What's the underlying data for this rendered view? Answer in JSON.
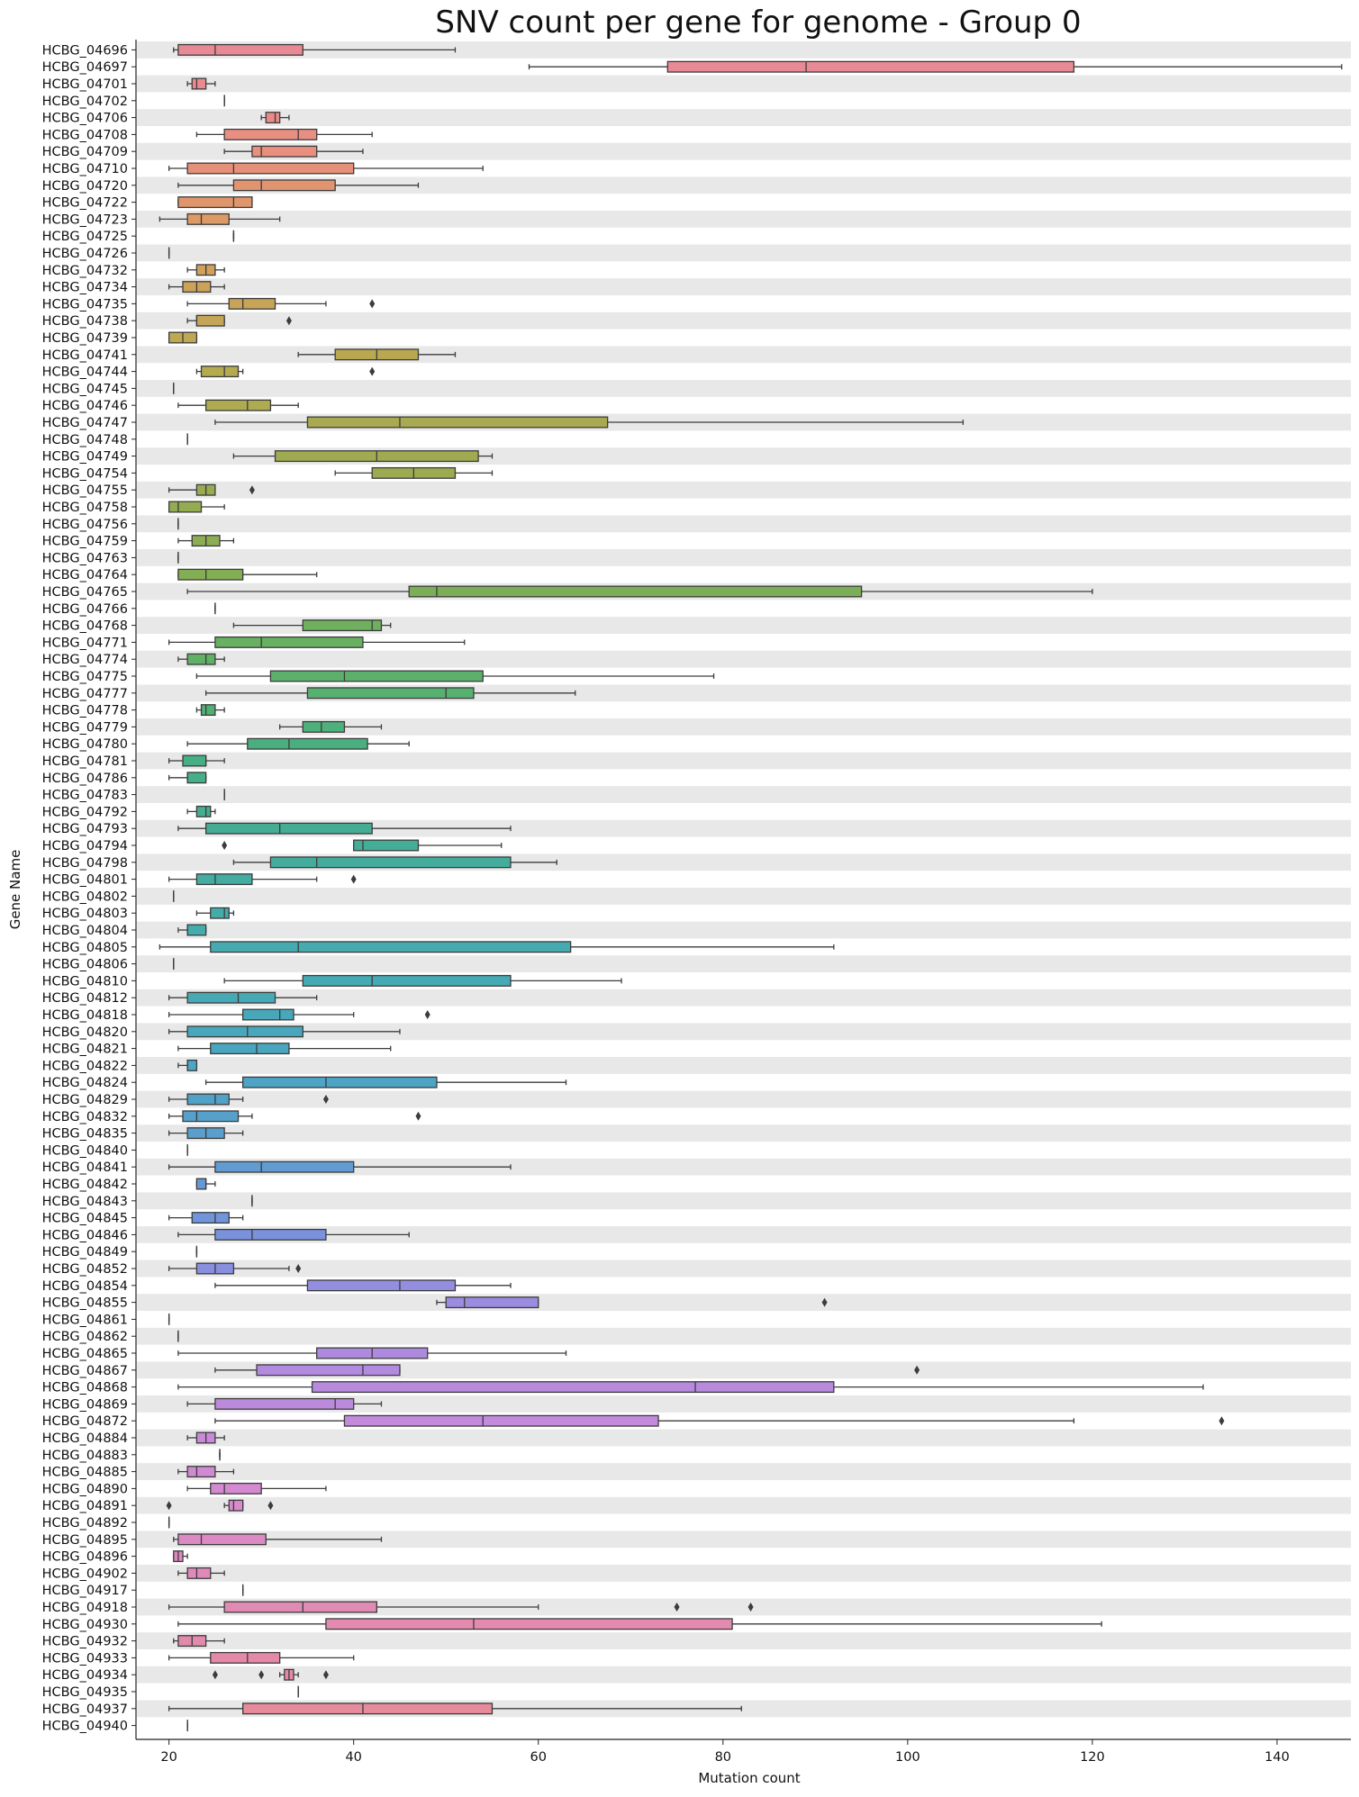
{
  "chart_data": {
    "type": "boxplot",
    "orientation": "horizontal",
    "title": "SNV count per gene for genome - Group 0",
    "xlabel": "Mutation count",
    "ylabel": "Gene Name",
    "xlim": [
      17.5,
      148
    ],
    "x_ticks": [
      20,
      40,
      60,
      80,
      100,
      120,
      140
    ],
    "alternating_row_shading": true,
    "grid": false,
    "legend": "none",
    "outlier_color": "#3c3c3c",
    "line_color": "#3c3c3c",
    "categories": [
      "HCBG_04696",
      "HCBG_04697",
      "HCBG_04701",
      "HCBG_04702",
      "HCBG_04706",
      "HCBG_04708",
      "HCBG_04709",
      "HCBG_04710",
      "HCBG_04720",
      "HCBG_04722",
      "HCBG_04723",
      "HCBG_04725",
      "HCBG_04726",
      "HCBG_04732",
      "HCBG_04734",
      "HCBG_04735",
      "HCBG_04738",
      "HCBG_04739",
      "HCBG_04741",
      "HCBG_04744",
      "HCBG_04745",
      "HCBG_04746",
      "HCBG_04747",
      "HCBG_04748",
      "HCBG_04749",
      "HCBG_04754",
      "HCBG_04755",
      "HCBG_04758",
      "HCBG_04756",
      "HCBG_04759",
      "HCBG_04763",
      "HCBG_04764",
      "HCBG_04765",
      "HCBG_04766",
      "HCBG_04768",
      "HCBG_04771",
      "HCBG_04774",
      "HCBG_04775",
      "HCBG_04777",
      "HCBG_04778",
      "HCBG_04779",
      "HCBG_04780",
      "HCBG_04781",
      "HCBG_04786",
      "HCBG_04783",
      "HCBG_04792",
      "HCBG_04793",
      "HCBG_04794",
      "HCBG_04798",
      "HCBG_04801",
      "HCBG_04802",
      "HCBG_04803",
      "HCBG_04804",
      "HCBG_04805",
      "HCBG_04806",
      "HCBG_04810",
      "HCBG_04812",
      "HCBG_04818",
      "HCBG_04820",
      "HCBG_04821",
      "HCBG_04822",
      "HCBG_04824",
      "HCBG_04829",
      "HCBG_04832",
      "HCBG_04835",
      "HCBG_04840",
      "HCBG_04841",
      "HCBG_04842",
      "HCBG_04843",
      "HCBG_04845",
      "HCBG_04846",
      "HCBG_04849",
      "HCBG_04852",
      "HCBG_04854",
      "HCBG_04855",
      "HCBG_04861",
      "HCBG_04862",
      "HCBG_04865",
      "HCBG_04867",
      "HCBG_04868",
      "HCBG_04869",
      "HCBG_04872",
      "HCBG_04884",
      "HCBG_04883",
      "HCBG_04885",
      "HCBG_04890",
      "HCBG_04891",
      "HCBG_04892",
      "HCBG_04895",
      "HCBG_04896",
      "HCBG_04902",
      "HCBG_04917",
      "HCBG_04918",
      "HCBG_04930",
      "HCBG_04932",
      "HCBG_04933",
      "HCBG_04934",
      "HCBG_04935",
      "HCBG_04937",
      "HCBG_04940"
    ],
    "boxes": [
      {
        "min": 20.5,
        "q1": 21,
        "median": 25,
        "q3": 34.5,
        "max": 51,
        "color": "#e88a95",
        "outliers": []
      },
      {
        "min": 59,
        "q1": 74,
        "median": 89,
        "q3": 118,
        "max": 147,
        "color": "#e88a95",
        "outliers": []
      },
      {
        "min": 22,
        "q1": 22.5,
        "median": 23,
        "q3": 24,
        "max": 25,
        "color": "#e88a90",
        "outliers": []
      },
      {
        "min": 26,
        "q1": 26,
        "median": 26,
        "q3": 26,
        "max": 26,
        "color": "#e88a90",
        "outliers": []
      },
      {
        "min": 30,
        "q1": 30.5,
        "median": 31.5,
        "q3": 32,
        "max": 33,
        "color": "#e88a88",
        "outliers": []
      },
      {
        "min": 23,
        "q1": 26,
        "median": 34,
        "q3": 36,
        "max": 42,
        "color": "#e88f82",
        "outliers": []
      },
      {
        "min": 26,
        "q1": 29,
        "median": 30,
        "q3": 36,
        "max": 41,
        "color": "#e88f7e",
        "outliers": []
      },
      {
        "min": 20,
        "q1": 22,
        "median": 27,
        "q3": 40,
        "max": 54,
        "color": "#e6907a",
        "outliers": []
      },
      {
        "min": 21,
        "q1": 27,
        "median": 30,
        "q3": 38,
        "max": 47,
        "color": "#e29470",
        "outliers": []
      },
      {
        "min": 21,
        "q1": 21,
        "median": 27,
        "q3": 29,
        "max": 29,
        "color": "#e0966c",
        "outliers": []
      },
      {
        "min": 19,
        "q1": 22,
        "median": 23.5,
        "q3": 26.5,
        "max": 32,
        "color": "#db9a66",
        "outliers": []
      },
      {
        "min": 27,
        "q1": 27,
        "median": 27,
        "q3": 27,
        "max": 27,
        "color": "#d89c62",
        "outliers": []
      },
      {
        "min": 20,
        "q1": 20,
        "median": 20,
        "q3": 20,
        "max": 20,
        "color": "#d49e5e",
        "outliers": []
      },
      {
        "min": 22,
        "q1": 23,
        "median": 24,
        "q3": 25,
        "max": 26,
        "color": "#d0a05c",
        "outliers": []
      },
      {
        "min": 20,
        "q1": 21.5,
        "median": 23,
        "q3": 24.5,
        "max": 26,
        "color": "#cca25a",
        "outliers": []
      },
      {
        "min": 22,
        "q1": 26.5,
        "median": 28,
        "q3": 31.5,
        "max": 37,
        "color": "#c8a458",
        "outliers": [
          42
        ]
      },
      {
        "min": 22,
        "q1": 23,
        "median": 23,
        "q3": 26,
        "max": 26,
        "color": "#c4a656",
        "outliers": [
          33
        ]
      },
      {
        "min": 20,
        "q1": 20,
        "median": 21.5,
        "q3": 23,
        "max": 23,
        "color": "#bfa854",
        "outliers": []
      },
      {
        "min": 34,
        "q1": 38,
        "median": 42.5,
        "q3": 47,
        "max": 51,
        "color": "#b8a850",
        "outliers": []
      },
      {
        "min": 23,
        "q1": 23.5,
        "median": 26,
        "q3": 27.5,
        "max": 28,
        "color": "#b4aa50",
        "outliers": [
          42
        ]
      },
      {
        "min": 20.5,
        "q1": 20.5,
        "median": 20.5,
        "q3": 20.5,
        "max": 20.5,
        "color": "#b0aa50",
        "outliers": []
      },
      {
        "min": 21,
        "q1": 24,
        "median": 28.5,
        "q3": 31,
        "max": 34,
        "color": "#aeab50",
        "outliers": []
      },
      {
        "min": 25,
        "q1": 35,
        "median": 45,
        "q3": 67.5,
        "max": 106,
        "color": "#a8a950",
        "outliers": []
      },
      {
        "min": 22,
        "q1": 22,
        "median": 22,
        "q3": 22,
        "max": 22,
        "color": "#a4aa50",
        "outliers": []
      },
      {
        "min": 27,
        "q1": 31.5,
        "median": 42.5,
        "q3": 53.5,
        "max": 55,
        "color": "#a0aa50",
        "outliers": []
      },
      {
        "min": 38,
        "q1": 42,
        "median": 46.5,
        "q3": 51,
        "max": 55,
        "color": "#9caa50",
        "outliers": []
      },
      {
        "min": 20,
        "q1": 23,
        "median": 24,
        "q3": 25,
        "max": 25,
        "color": "#98ab52",
        "outliers": [
          29
        ]
      },
      {
        "min": 20,
        "q1": 20,
        "median": 21,
        "q3": 23.5,
        "max": 26,
        "color": "#94ab52",
        "outliers": []
      },
      {
        "min": 21,
        "q1": 21,
        "median": 21,
        "q3": 21,
        "max": 21,
        "color": "#90ac54",
        "outliers": []
      },
      {
        "min": 21,
        "q1": 22.5,
        "median": 24,
        "q3": 25.5,
        "max": 27,
        "color": "#8cad54",
        "outliers": []
      },
      {
        "min": 21,
        "q1": 21,
        "median": 21,
        "q3": 21,
        "max": 21,
        "color": "#88ae54",
        "outliers": []
      },
      {
        "min": 21,
        "q1": 21,
        "median": 24,
        "q3": 28,
        "max": 36,
        "color": "#84ae54",
        "outliers": []
      },
      {
        "min": 22,
        "q1": 46,
        "median": 49,
        "q3": 95,
        "max": 120,
        "color": "#7cae58",
        "outliers": []
      },
      {
        "min": 25,
        "q1": 25,
        "median": 25,
        "q3": 25,
        "max": 25,
        "color": "#78b05a",
        "outliers": []
      },
      {
        "min": 27,
        "q1": 34.5,
        "median": 42,
        "q3": 43,
        "max": 44,
        "color": "#6eb05e",
        "outliers": []
      },
      {
        "min": 20,
        "q1": 25,
        "median": 30,
        "q3": 41,
        "max": 52,
        "color": "#68b062",
        "outliers": []
      },
      {
        "min": 21,
        "q1": 22,
        "median": 24,
        "q3": 25,
        "max": 26,
        "color": "#62b066",
        "outliers": []
      },
      {
        "min": 23,
        "q1": 31,
        "median": 39,
        "q3": 54,
        "max": 79,
        "color": "#5cb06c",
        "outliers": []
      },
      {
        "min": 24,
        "q1": 35,
        "median": 50,
        "q3": 53,
        "max": 64,
        "color": "#56b070",
        "outliers": []
      },
      {
        "min": 23,
        "q1": 23.5,
        "median": 24,
        "q3": 25,
        "max": 26,
        "color": "#52b074",
        "outliers": []
      },
      {
        "min": 32,
        "q1": 34.5,
        "median": 36.5,
        "q3": 39,
        "max": 43,
        "color": "#4eb07a",
        "outliers": []
      },
      {
        "min": 22,
        "q1": 28.5,
        "median": 33,
        "q3": 41.5,
        "max": 46,
        "color": "#4aaf7e",
        "outliers": []
      },
      {
        "min": 20,
        "q1": 21.5,
        "median": 24,
        "q3": 24,
        "max": 26,
        "color": "#48ae84",
        "outliers": []
      },
      {
        "min": 20,
        "q1": 22,
        "median": 22,
        "q3": 24,
        "max": 24,
        "color": "#46ae88",
        "outliers": []
      },
      {
        "min": 26,
        "q1": 26,
        "median": 26,
        "q3": 26,
        "max": 26,
        "color": "#46ae8c",
        "outliers": []
      },
      {
        "min": 22,
        "q1": 23,
        "median": 24,
        "q3": 24.5,
        "max": 25,
        "color": "#46ad90",
        "outliers": []
      },
      {
        "min": 21,
        "q1": 24,
        "median": 32,
        "q3": 42,
        "max": 57,
        "color": "#44ad94",
        "outliers": []
      },
      {
        "min": 40,
        "q1": 40,
        "median": 41,
        "q3": 47,
        "max": 56,
        "color": "#44ad98",
        "outliers": [
          26
        ]
      },
      {
        "min": 27,
        "q1": 31,
        "median": 36,
        "q3": 57,
        "max": 62,
        "color": "#44ac9c",
        "outliers": []
      },
      {
        "min": 20,
        "q1": 23,
        "median": 25,
        "q3": 29,
        "max": 36,
        "color": "#44aca0",
        "outliers": [
          40
        ]
      },
      {
        "min": 20.5,
        "q1": 20.5,
        "median": 20.5,
        "q3": 20.5,
        "max": 20.5,
        "color": "#44aca4",
        "outliers": []
      },
      {
        "min": 23,
        "q1": 24.5,
        "median": 26,
        "q3": 26.5,
        "max": 27,
        "color": "#44aca8",
        "outliers": []
      },
      {
        "min": 21,
        "q1": 22,
        "median": 22,
        "q3": 24,
        "max": 24,
        "color": "#44acac",
        "outliers": []
      },
      {
        "min": 19,
        "q1": 24.5,
        "median": 34,
        "q3": 63.5,
        "max": 92,
        "color": "#46abb0",
        "outliers": []
      },
      {
        "min": 20.5,
        "q1": 20.5,
        "median": 20.5,
        "q3": 20.5,
        "max": 20.5,
        "color": "#46abb2",
        "outliers": []
      },
      {
        "min": 26,
        "q1": 34.5,
        "median": 42,
        "q3": 57,
        "max": 69,
        "color": "#46aab4",
        "outliers": []
      },
      {
        "min": 20,
        "q1": 22,
        "median": 27.5,
        "q3": 31.5,
        "max": 36,
        "color": "#46a9b6",
        "outliers": []
      },
      {
        "min": 20,
        "q1": 28,
        "median": 32,
        "q3": 33.5,
        "max": 40,
        "color": "#48a8ba",
        "outliers": [
          48
        ]
      },
      {
        "min": 20,
        "q1": 22,
        "median": 28.5,
        "q3": 34.5,
        "max": 45,
        "color": "#48a7bc",
        "outliers": []
      },
      {
        "min": 21,
        "q1": 24.5,
        "median": 29.5,
        "q3": 33,
        "max": 44,
        "color": "#4aa6be",
        "outliers": []
      },
      {
        "min": 21,
        "q1": 22,
        "median": 22,
        "q3": 23,
        "max": 23,
        "color": "#4ca5c2",
        "outliers": []
      },
      {
        "min": 24,
        "q1": 28,
        "median": 37,
        "q3": 49,
        "max": 63,
        "color": "#4ea4c4",
        "outliers": []
      },
      {
        "min": 20,
        "q1": 22,
        "median": 25,
        "q3": 26.5,
        "max": 28,
        "color": "#52a2c8",
        "outliers": [
          37
        ]
      },
      {
        "min": 20,
        "q1": 21.5,
        "median": 23,
        "q3": 27.5,
        "max": 29,
        "color": "#56a0ca",
        "outliers": [
          47
        ]
      },
      {
        "min": 20,
        "q1": 22,
        "median": 24,
        "q3": 26,
        "max": 28,
        "color": "#5a9ecc",
        "outliers": []
      },
      {
        "min": 22,
        "q1": 22,
        "median": 22,
        "q3": 22,
        "max": 22,
        "color": "#5e9cd0",
        "outliers": []
      },
      {
        "min": 20,
        "q1": 25,
        "median": 30,
        "q3": 40,
        "max": 57,
        "color": "#629ad2",
        "outliers": []
      },
      {
        "min": 23,
        "q1": 23,
        "median": 24,
        "q3": 24,
        "max": 25,
        "color": "#6698d6",
        "outliers": []
      },
      {
        "min": 29,
        "q1": 29,
        "median": 29,
        "q3": 29,
        "max": 29,
        "color": "#6c96d8",
        "outliers": []
      },
      {
        "min": 20,
        "q1": 22.5,
        "median": 25,
        "q3": 26.5,
        "max": 28,
        "color": "#7294da",
        "outliers": []
      },
      {
        "min": 21,
        "q1": 25,
        "median": 29,
        "q3": 37,
        "max": 46,
        "color": "#7a92dc",
        "outliers": []
      },
      {
        "min": 23,
        "q1": 23,
        "median": 23,
        "q3": 23,
        "max": 23,
        "color": "#8290de",
        "outliers": []
      },
      {
        "min": 20,
        "q1": 23,
        "median": 25,
        "q3": 27,
        "max": 33,
        "color": "#8a8ede",
        "outliers": [
          34
        ]
      },
      {
        "min": 25,
        "q1": 35,
        "median": 45,
        "q3": 51,
        "max": 57,
        "color": "#948ee0",
        "outliers": []
      },
      {
        "min": 49,
        "q1": 50,
        "median": 52,
        "q3": 60,
        "max": 60,
        "color": "#9c8ce0",
        "outliers": [
          91
        ]
      },
      {
        "min": 20,
        "q1": 20,
        "median": 20,
        "q3": 20,
        "max": 20,
        "color": "#a28ae0",
        "outliers": []
      },
      {
        "min": 21,
        "q1": 21,
        "median": 21,
        "q3": 21,
        "max": 21,
        "color": "#a88ae0",
        "outliers": []
      },
      {
        "min": 21,
        "q1": 36,
        "median": 42,
        "q3": 48,
        "max": 63,
        "color": "#ae8adf",
        "outliers": []
      },
      {
        "min": 25,
        "q1": 29.5,
        "median": 41,
        "q3": 45,
        "max": 45,
        "color": "#b28adf",
        "outliers": [
          101
        ]
      },
      {
        "min": 21,
        "q1": 35.5,
        "median": 77,
        "q3": 92,
        "max": 132,
        "color": "#b88ade",
        "outliers": []
      },
      {
        "min": 22,
        "q1": 25,
        "median": 38,
        "q3": 40,
        "max": 43,
        "color": "#bc8add",
        "outliers": []
      },
      {
        "min": 25,
        "q1": 39,
        "median": 54,
        "q3": 73,
        "max": 118,
        "color": "#c48adb",
        "outliers": [
          134
        ]
      },
      {
        "min": 22,
        "q1": 23,
        "median": 24,
        "q3": 25,
        "max": 26,
        "color": "#c88ad8",
        "outliers": []
      },
      {
        "min": 25.5,
        "q1": 25.5,
        "median": 25.5,
        "q3": 25.5,
        "max": 25.5,
        "color": "#cc8ad6",
        "outliers": []
      },
      {
        "min": 21,
        "q1": 22,
        "median": 23,
        "q3": 25,
        "max": 27,
        "color": "#d08ad2",
        "outliers": []
      },
      {
        "min": 22,
        "q1": 24.5,
        "median": 26,
        "q3": 30,
        "max": 37,
        "color": "#d48ad0",
        "outliers": []
      },
      {
        "min": 26,
        "q1": 26.5,
        "median": 27,
        "q3": 28,
        "max": 28,
        "color": "#d88acc",
        "outliers": [
          20,
          31
        ]
      },
      {
        "min": 20,
        "q1": 20,
        "median": 20,
        "q3": 20,
        "max": 20,
        "color": "#da8ac8",
        "outliers": []
      },
      {
        "min": 20.5,
        "q1": 21,
        "median": 23.5,
        "q3": 30.5,
        "max": 43,
        "color": "#dc8ac4",
        "outliers": []
      },
      {
        "min": 20.5,
        "q1": 20.5,
        "median": 21,
        "q3": 21.5,
        "max": 22,
        "color": "#de8ac0",
        "outliers": []
      },
      {
        "min": 21,
        "q1": 22,
        "median": 23,
        "q3": 24.5,
        "max": 26,
        "color": "#e08abc",
        "outliers": []
      },
      {
        "min": 28,
        "q1": 28,
        "median": 28,
        "q3": 28,
        "max": 28,
        "color": "#e08ab8",
        "outliers": []
      },
      {
        "min": 20,
        "q1": 26,
        "median": 34.5,
        "q3": 42.5,
        "max": 60,
        "color": "#e08ab4",
        "outliers": [
          75,
          83
        ]
      },
      {
        "min": 21,
        "q1": 37,
        "median": 53,
        "q3": 81,
        "max": 121,
        "color": "#e28ab0",
        "outliers": []
      },
      {
        "min": 20.5,
        "q1": 21,
        "median": 22.5,
        "q3": 24,
        "max": 26,
        "color": "#e28aac",
        "outliers": []
      },
      {
        "min": 20,
        "q1": 24.5,
        "median": 28.5,
        "q3": 32,
        "max": 40,
        "color": "#e48aa8",
        "outliers": []
      },
      {
        "min": 32,
        "q1": 32.5,
        "median": 33,
        "q3": 33.5,
        "max": 34,
        "color": "#e48aa4",
        "outliers": [
          25,
          30,
          37
        ]
      },
      {
        "min": 34,
        "q1": 34,
        "median": 34,
        "q3": 34,
        "max": 34,
        "color": "#e68aa0",
        "outliers": []
      },
      {
        "min": 20,
        "q1": 28,
        "median": 41,
        "q3": 55,
        "max": 82,
        "color": "#e68a9c",
        "outliers": []
      },
      {
        "min": 22,
        "q1": 22,
        "median": 22,
        "q3": 22,
        "max": 22,
        "color": "#e68a98",
        "outliers": []
      }
    ]
  }
}
